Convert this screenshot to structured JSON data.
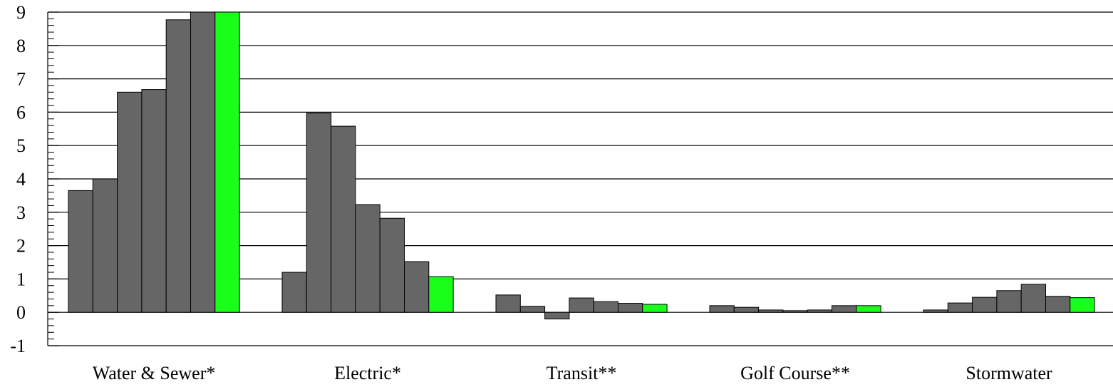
{
  "chart_data": {
    "type": "bar",
    "title": "",
    "xlabel": "",
    "ylabel": "",
    "ylim": [
      -1,
      9
    ],
    "yticks": [
      -1,
      0,
      1,
      2,
      3,
      4,
      5,
      6,
      7,
      8,
      9
    ],
    "minor_ticks_per_major": 5,
    "grid": true,
    "legend": "none",
    "categories": [
      "Water & Sewer*",
      "Electric*",
      "Transit**",
      "Golf Course**",
      "Stormwater"
    ],
    "series": [
      {
        "color": "#666666",
        "values": [
          3.65,
          1.2,
          0.52,
          0.2,
          0.07
        ]
      },
      {
        "color": "#666666",
        "values": [
          4.0,
          5.97,
          0.18,
          0.15,
          0.28
        ]
      },
      {
        "color": "#666666",
        "values": [
          6.6,
          5.58,
          -0.2,
          0.07,
          0.45
        ]
      },
      {
        "color": "#666666",
        "values": [
          6.68,
          3.23,
          0.43,
          0.05,
          0.65
        ]
      },
      {
        "color": "#666666",
        "values": [
          8.77,
          2.82,
          0.32,
          0.07,
          0.84
        ]
      },
      {
        "color": "#666666",
        "values": [
          9.0,
          1.52,
          0.27,
          0.2,
          0.48
        ]
      },
      {
        "color": "#1aff1a",
        "values": [
          9.0,
          1.07,
          0.24,
          0.2,
          0.44
        ]
      }
    ]
  }
}
